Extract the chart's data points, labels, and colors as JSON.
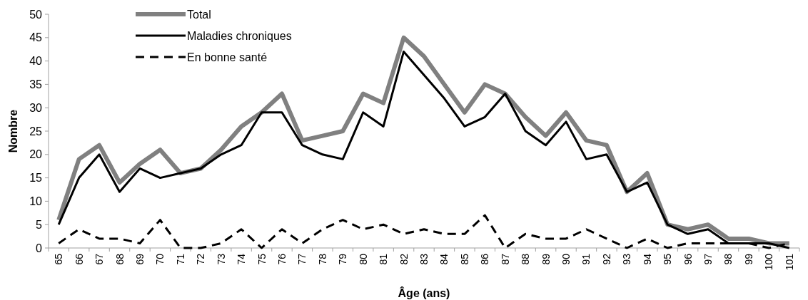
{
  "chart_data": {
    "type": "line",
    "xlabel": "Âge (ans)",
    "ylabel": "Nombre",
    "categories": [
      "65",
      "66",
      "67",
      "68",
      "69",
      "70",
      "71",
      "72",
      "73",
      "74",
      "75",
      "76",
      "77",
      "78",
      "79",
      "80",
      "81",
      "82",
      "83",
      "84",
      "85",
      "86",
      "87",
      "88",
      "89",
      "90",
      "91",
      "92",
      "93",
      "94",
      "95",
      "96",
      "97",
      "98",
      "99",
      "100",
      "101"
    ],
    "series": [
      {
        "name": "Total",
        "color": "#808080",
        "line_style": "solid",
        "values": [
          6,
          19,
          22,
          14,
          18,
          21,
          16,
          17,
          21,
          26,
          29,
          33,
          23,
          24,
          25,
          33,
          31,
          45,
          41,
          35,
          29,
          35,
          33,
          28,
          24,
          29,
          23,
          22,
          12,
          16,
          5,
          4,
          5,
          2,
          2,
          1,
          1
        ]
      },
      {
        "name": "Maladies chroniques",
        "color": "#000000",
        "line_style": "solid",
        "values": [
          5,
          15,
          20,
          12,
          17,
          15,
          16,
          17,
          20,
          22,
          29,
          29,
          22,
          20,
          19,
          29,
          26,
          42,
          37,
          32,
          26,
          28,
          33,
          25,
          22,
          27,
          19,
          20,
          12,
          14,
          5,
          3,
          4,
          1,
          1,
          1,
          0
        ]
      },
      {
        "name": "En bonne santé",
        "color": "#000000",
        "line_style": "dashed",
        "values": [
          1,
          4,
          2,
          2,
          1,
          6,
          0,
          0,
          1,
          4,
          0,
          4,
          1,
          4,
          6,
          4,
          5,
          3,
          4,
          3,
          3,
          7,
          0,
          3,
          2,
          2,
          4,
          2,
          0,
          2,
          0,
          1,
          1,
          1,
          1,
          0,
          1
        ]
      }
    ],
    "ylim": [
      0,
      50
    ],
    "yticks": [
      0,
      5,
      10,
      15,
      20,
      25,
      30,
      35,
      40,
      45,
      50
    ],
    "grid": false,
    "legend": "top left",
    "marker": "none"
  }
}
